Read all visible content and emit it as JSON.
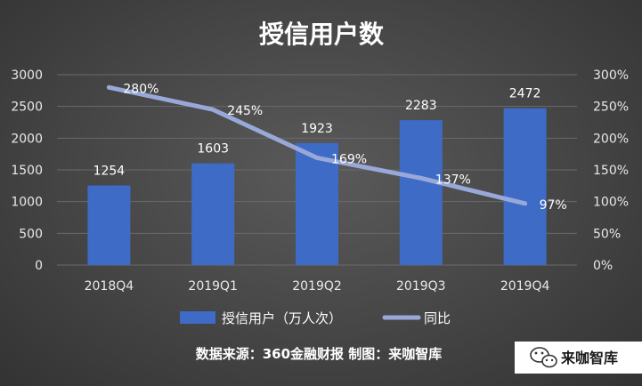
{
  "chart_data": {
    "type": "bar",
    "title": "授信用户数",
    "categories": [
      "2018Q4",
      "2019Q1",
      "2019Q2",
      "2019Q3",
      "2019Q4"
    ],
    "series": [
      {
        "name": "授信用户（万人次）",
        "type": "bar",
        "axis": "left",
        "color": "#3d6bc6",
        "values": [
          1254,
          1603,
          1923,
          2283,
          2472
        ]
      },
      {
        "name": "同比",
        "type": "line",
        "axis": "right",
        "color": "#98a8d8",
        "values": [
          280,
          245,
          169,
          137,
          97
        ],
        "labels": [
          "280%",
          "245%",
          "169%",
          "137%",
          "97%"
        ]
      }
    ],
    "ylim": [
      0,
      3000
    ],
    "yticks": [
      "0",
      "500",
      "1000",
      "1500",
      "2000",
      "2500",
      "3000"
    ],
    "y2lim": [
      0,
      300
    ],
    "y2ticks": [
      "0%",
      "50%",
      "100%",
      "150%",
      "200%",
      "250%",
      "300%"
    ],
    "grid": true,
    "legend_position": "bottom"
  },
  "footer": {
    "source": "数据来源：360金融财报 制图：来咖智库",
    "brand": "来咖智库"
  }
}
